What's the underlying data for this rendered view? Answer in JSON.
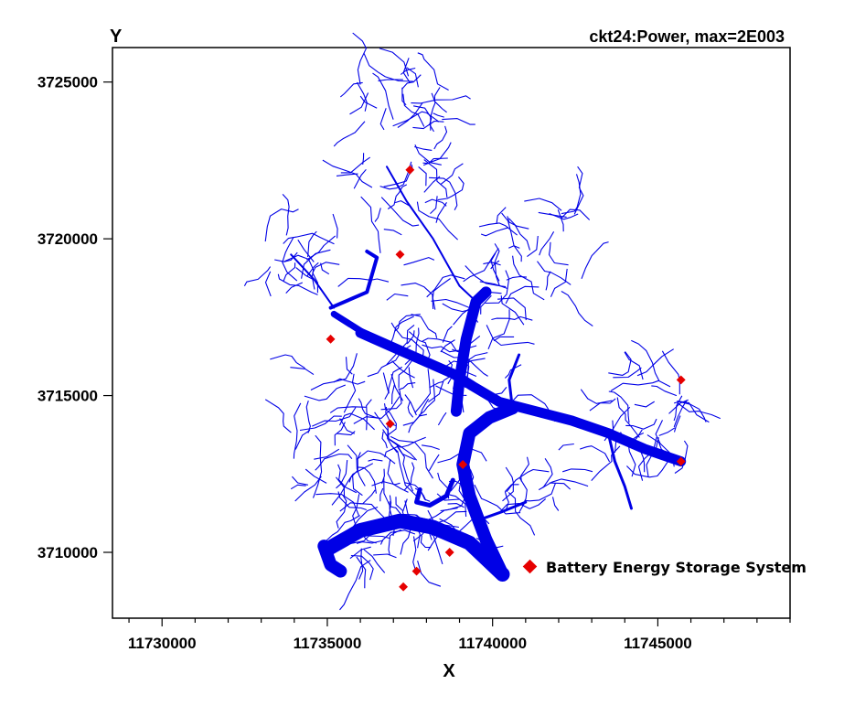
{
  "chart_data": {
    "type": "scatter",
    "title": "ckt24:Power, max=2E003",
    "xlabel": "X",
    "ylabel": "Y",
    "xlim": [
      11728500,
      11749000
    ],
    "ylim": [
      3707900,
      3726100
    ],
    "x_ticks": [
      11730000,
      11735000,
      11740000,
      11745000
    ],
    "x_tick_labels": [
      "11730000",
      "11735000",
      "11740000",
      "11745000"
    ],
    "x_minor_step": 1000,
    "y_ticks": [
      3710000,
      3715000,
      3720000,
      3725000
    ],
    "y_tick_labels": [
      "3710000",
      "3715000",
      "3720000",
      "3725000"
    ],
    "grid": false,
    "colors": {
      "feeder": "#0000e6",
      "bess": "#e60000",
      "frame": "#000000"
    },
    "feeder_mains": [
      {
        "weight": 16,
        "points": [
          [
            11735000,
            3710100
          ],
          [
            11736000,
            3710700
          ],
          [
            11737200,
            3711000
          ],
          [
            11738200,
            3710800
          ],
          [
            11739300,
            3710300
          ],
          [
            11740300,
            3709300
          ]
        ]
      },
      {
        "weight": 14,
        "points": [
          [
            11734900,
            3710200
          ],
          [
            11735100,
            3709600
          ],
          [
            11735400,
            3709400
          ]
        ]
      },
      {
        "weight": 14,
        "points": [
          [
            11740300,
            3709300
          ],
          [
            11739800,
            3710400
          ],
          [
            11739300,
            3711800
          ],
          [
            11739100,
            3712800
          ],
          [
            11739300,
            3713800
          ],
          [
            11739900,
            3714300
          ],
          [
            11740600,
            3714600
          ]
        ]
      },
      {
        "weight": 12,
        "points": [
          [
            11738900,
            3714500
          ],
          [
            11739000,
            3715500
          ],
          [
            11739200,
            3716800
          ],
          [
            11739500,
            3718000
          ],
          [
            11739800,
            3718300
          ]
        ]
      },
      {
        "weight": 11,
        "points": [
          [
            11736000,
            3717000
          ],
          [
            11737500,
            3716300
          ],
          [
            11738800,
            3715700
          ],
          [
            11739400,
            3715300
          ],
          [
            11740200,
            3714800
          ],
          [
            11741300,
            3714500
          ],
          [
            11742400,
            3714200
          ],
          [
            11743500,
            3713800
          ],
          [
            11744600,
            3713300
          ],
          [
            11745700,
            3712900
          ]
        ]
      },
      {
        "weight": 7,
        "points": [
          [
            11735200,
            3717600
          ],
          [
            11736100,
            3717000
          ]
        ]
      },
      {
        "weight": 5,
        "points": [
          [
            11738800,
            3712300
          ],
          [
            11738600,
            3711800
          ],
          [
            11738100,
            3711500
          ],
          [
            11737700,
            3711600
          ],
          [
            11737800,
            3712000
          ]
        ]
      },
      {
        "weight": 4,
        "points": [
          [
            11735100,
            3717800
          ],
          [
            11736200,
            3718300
          ],
          [
            11736500,
            3719400
          ],
          [
            11736200,
            3719600
          ]
        ]
      },
      {
        "weight": 3,
        "points": [
          [
            11743500,
            3713800
          ],
          [
            11743700,
            3712900
          ],
          [
            11744000,
            3712100
          ],
          [
            11744200,
            3711400
          ]
        ]
      },
      {
        "weight": 3,
        "points": [
          [
            11739500,
            3711000
          ],
          [
            11740300,
            3711300
          ],
          [
            11741000,
            3711600
          ]
        ]
      },
      {
        "weight": 3,
        "points": [
          [
            11740600,
            3714600
          ],
          [
            11740500,
            3715500
          ],
          [
            11740800,
            3716300
          ]
        ]
      },
      {
        "weight": 2,
        "points": [
          [
            11733900,
            3719500
          ],
          [
            11734600,
            3718700
          ],
          [
            11735200,
            3717800
          ]
        ]
      },
      {
        "weight": 2,
        "points": [
          [
            11736800,
            3722300
          ],
          [
            11737400,
            3721200
          ],
          [
            11738200,
            3720000
          ],
          [
            11739000,
            3718500
          ],
          [
            11739500,
            3718000
          ]
        ]
      }
    ],
    "bess_points": [
      [
        11737500,
        3722200
      ],
      [
        11737200,
        3719500
      ],
      [
        11735100,
        3716800
      ],
      [
        11745700,
        3715500
      ],
      [
        11736900,
        3714100
      ],
      [
        11745700,
        3712900
      ],
      [
        11739100,
        3712800
      ],
      [
        11738700,
        3710000
      ],
      [
        11737700,
        3709400
      ],
      [
        11737300,
        3708900
      ]
    ],
    "legend": {
      "label": "Battery Energy Storage System",
      "position": "bottom-right"
    }
  }
}
